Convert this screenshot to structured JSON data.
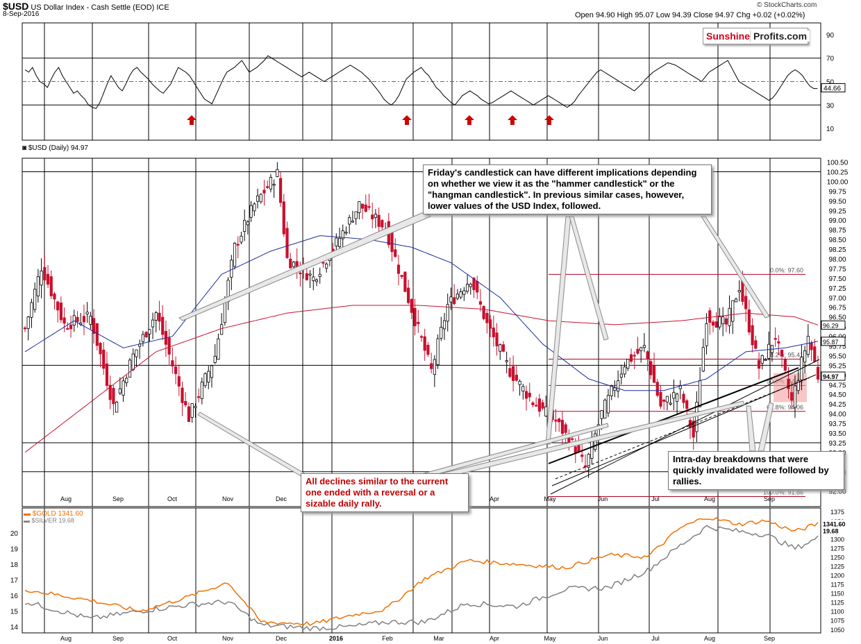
{
  "header": {
    "symbol": "$USD",
    "name": "US Dollar Index - Cash Settle (EOD)",
    "exchange": "ICE",
    "date": "8-Sep-2016",
    "ohlc": "Open 94.90  High 95.07  Low 94.39  Close 94.97  Chg +0.02 (+0.02%)",
    "copyright": "© StockCharts.com"
  },
  "logo": {
    "part1": "Sunshine",
    "part2": "Profits.com"
  },
  "callouts": {
    "friday": "Friday's candlestick can have different implications depending on whether we view it as  the \"hammer candlestick\" or the \"hangman candlestick\". In previous similar cases, however, lower values of the USD Index, followed.",
    "declines": "All declines similar to the current one ended with a reversal or a sizable daily rally.",
    "breakdowns": "Intra-day breakdowns that were quickly invalidated were followed by rallies."
  },
  "chart_data": [
    {
      "type": "line",
      "name": "RSI",
      "y_ticks": [
        10,
        30,
        50,
        70,
        90
      ],
      "ylim": [
        0,
        100
      ],
      "last_value_label": "44.66",
      "arrows_at_x": [
        40,
        99,
        129,
        145,
        157
      ],
      "values": [
        60,
        58,
        62,
        55,
        50,
        48,
        45,
        52,
        58,
        62,
        55,
        50,
        45,
        40,
        42,
        38,
        35,
        30,
        28,
        27,
        32,
        40,
        48,
        55,
        50,
        45,
        42,
        48,
        55,
        60,
        62,
        58,
        55,
        52,
        48,
        45,
        42,
        40,
        44,
        48,
        55,
        62,
        60,
        58,
        55,
        50,
        45,
        40,
        35,
        33,
        31,
        38,
        45,
        52,
        58,
        60,
        62,
        65,
        68,
        63,
        58,
        60,
        62,
        65,
        68,
        72,
        70,
        68,
        66,
        64,
        62,
        60,
        58,
        56,
        54,
        56,
        58,
        56,
        54,
        52,
        50,
        52,
        54,
        56,
        58,
        60,
        62,
        64,
        62,
        60,
        58,
        55,
        52,
        48,
        44,
        40,
        35,
        32,
        30,
        33,
        38,
        45,
        52,
        55,
        58,
        60,
        62,
        58,
        55,
        50,
        45,
        42,
        38,
        35,
        32,
        30,
        34,
        38,
        40,
        42,
        40,
        38,
        35,
        33,
        31,
        32,
        34,
        36,
        38,
        40,
        42,
        40,
        38,
        36,
        34,
        32,
        30,
        32,
        34,
        36,
        38,
        36,
        34,
        32,
        30,
        28,
        30,
        33,
        38,
        42,
        46,
        50,
        54,
        58,
        60,
        58,
        56,
        54,
        52,
        50,
        48,
        46,
        44,
        42,
        45,
        48,
        52,
        55,
        58,
        60,
        62,
        64,
        66,
        65,
        64,
        62,
        60,
        58,
        56,
        54,
        52,
        50,
        54,
        58,
        60,
        62,
        64,
        66,
        68,
        62,
        56,
        50,
        48,
        46,
        44,
        42,
        40,
        38,
        36,
        34,
        36,
        40,
        45,
        50,
        55,
        58,
        60,
        58,
        55,
        50,
        46,
        44,
        44
      ]
    },
    {
      "type": "candlestick",
      "name": "$USD (Daily) 94.97",
      "ylim": [
        91.6,
        100.6
      ],
      "y_ticks": [
        92.0,
        92.5,
        93.0,
        93.25,
        93.5,
        93.75,
        94.0,
        94.25,
        94.5,
        94.75,
        95.0,
        95.25,
        95.5,
        95.75,
        96.0,
        96.25,
        96.5,
        96.75,
        97.0,
        97.25,
        97.5,
        97.75,
        98.0,
        98.25,
        98.5,
        98.75,
        99.0,
        99.25,
        99.5,
        99.75,
        100.0,
        100.25,
        100.5
      ],
      "x_labels": [
        "Aug",
        "Sep",
        "Oct",
        "Nov",
        "Dec",
        "2016",
        "Feb",
        "Mar",
        "Apr",
        "May",
        "Jun",
        "Jul",
        "Aug",
        "Sep"
      ],
      "close_anchors": [
        [
          0,
          96.2
        ],
        [
          5,
          97.8
        ],
        [
          12,
          96.3
        ],
        [
          20,
          96.5
        ],
        [
          27,
          94.2
        ],
        [
          33,
          95.5
        ],
        [
          40,
          96.6
        ],
        [
          50,
          93.9
        ],
        [
          58,
          95.5
        ],
        [
          64,
          98.3
        ],
        [
          70,
          99.4
        ],
        [
          77,
          100.2
        ],
        [
          80,
          98.0
        ],
        [
          88,
          97.5
        ],
        [
          95,
          98.4
        ],
        [
          102,
          99.4
        ],
        [
          110,
          98.8
        ],
        [
          118,
          96.7
        ],
        [
          124,
          95.1
        ],
        [
          129,
          96.8
        ],
        [
          136,
          97.5
        ],
        [
          141,
          96.3
        ],
        [
          148,
          95.1
        ],
        [
          155,
          94.3
        ],
        [
          162,
          93.8
        ],
        [
          168,
          93.1
        ],
        [
          171,
          92.6
        ],
        [
          176,
          94.0
        ],
        [
          183,
          95.3
        ],
        [
          189,
          95.7
        ],
        [
          194,
          94.2
        ],
        [
          200,
          94.6
        ],
        [
          204,
          93.4
        ],
        [
          208,
          96.5
        ],
        [
          214,
          96.3
        ],
        [
          218,
          97.3
        ],
        [
          224,
          95.2
        ],
        [
          229,
          96.0
        ],
        [
          234,
          94.3
        ],
        [
          239,
          96.0
        ],
        [
          242,
          94.97
        ]
      ],
      "ma50_anchors": [
        [
          0,
          95.6
        ],
        [
          15,
          96.4
        ],
        [
          30,
          95.7
        ],
        [
          45,
          96.0
        ],
        [
          60,
          97.6
        ],
        [
          75,
          98.2
        ],
        [
          90,
          98.6
        ],
        [
          105,
          98.5
        ],
        [
          118,
          98.3
        ],
        [
          130,
          97.9
        ],
        [
          145,
          97.0
        ],
        [
          158,
          95.8
        ],
        [
          172,
          94.9
        ],
        [
          183,
          94.6
        ],
        [
          195,
          94.6
        ],
        [
          208,
          94.9
        ],
        [
          220,
          95.6
        ],
        [
          232,
          95.7
        ],
        [
          242,
          95.87
        ]
      ],
      "ma200_anchors": [
        [
          0,
          93.0
        ],
        [
          20,
          94.3
        ],
        [
          40,
          95.6
        ],
        [
          60,
          96.2
        ],
        [
          80,
          96.6
        ],
        [
          100,
          96.8
        ],
        [
          120,
          96.8
        ],
        [
          140,
          96.7
        ],
        [
          160,
          96.4
        ],
        [
          180,
          96.3
        ],
        [
          200,
          96.4
        ],
        [
          220,
          96.6
        ],
        [
          235,
          96.5
        ],
        [
          242,
          96.29
        ]
      ],
      "right_labels": [
        "96.29",
        "95.87",
        "94.97"
      ],
      "fibonacci": [
        {
          "label": "0.0%: 97.60",
          "value": 97.6
        },
        {
          "label": "38.2%: 95.41",
          "value": 95.41
        },
        {
          "label": "50.0%: 94.73",
          "value": 94.73
        },
        {
          "label": "61.8%: 94.06",
          "value": 94.06
        },
        {
          "label": "100.0%: 91.86",
          "value": 91.86
        }
      ]
    },
    {
      "type": "line",
      "name": "$GOLD vs $SILVER",
      "series": [
        {
          "name": "$GOLD 1341.60",
          "color": "#f07000",
          "axis": "right",
          "ylim": [
            1040,
            1385
          ],
          "anchors": [
            [
              0,
              1160
            ],
            [
              20,
              1130
            ],
            [
              35,
              1100
            ],
            [
              50,
              1140
            ],
            [
              62,
              1180
            ],
            [
              72,
              1070
            ],
            [
              88,
              1065
            ],
            [
              100,
              1090
            ],
            [
              110,
              1105
            ],
            [
              122,
              1190
            ],
            [
              135,
              1240
            ],
            [
              150,
              1230
            ],
            [
              165,
              1220
            ],
            [
              178,
              1255
            ],
            [
              190,
              1250
            ],
            [
              200,
              1330
            ],
            [
              208,
              1360
            ],
            [
              218,
              1340
            ],
            [
              226,
              1350
            ],
            [
              235,
              1320
            ],
            [
              242,
              1341.6
            ]
          ]
        },
        {
          "name": "$SILVER 19.68",
          "color": "#808080",
          "axis": "left",
          "ylim": [
            13.6,
            21.6
          ],
          "anchors": [
            [
              0,
              15.6
            ],
            [
              20,
              14.5
            ],
            [
              35,
              15.0
            ],
            [
              50,
              15.4
            ],
            [
              62,
              15.6
            ],
            [
              72,
              14.1
            ],
            [
              88,
              13.9
            ],
            [
              100,
              14.0
            ],
            [
              110,
              14.3
            ],
            [
              122,
              14.3
            ],
            [
              135,
              15.5
            ],
            [
              150,
              15.3
            ],
            [
              165,
              16.4
            ],
            [
              178,
              16.5
            ],
            [
              190,
              17.6
            ],
            [
              200,
              19.2
            ],
            [
              208,
              20.4
            ],
            [
              218,
              20.1
            ],
            [
              226,
              19.9
            ],
            [
              235,
              19.0
            ],
            [
              242,
              19.68
            ]
          ]
        }
      ],
      "left_ticks": [
        14,
        15,
        16,
        17,
        18,
        19,
        20
      ],
      "right_ticks": [
        1050,
        1075,
        1100,
        1125,
        1150,
        1175,
        1200,
        1225,
        1250,
        1275,
        1300,
        1325,
        1350,
        1375
      ],
      "x_labels": [
        "Aug",
        "Sep",
        "Oct",
        "Nov",
        "Dec",
        "2016",
        "Feb",
        "Mar",
        "Apr",
        "May",
        "Jun",
        "Jul",
        "Aug",
        "Sep"
      ],
      "right_labels": [
        "1341.60",
        "19.68"
      ]
    }
  ]
}
